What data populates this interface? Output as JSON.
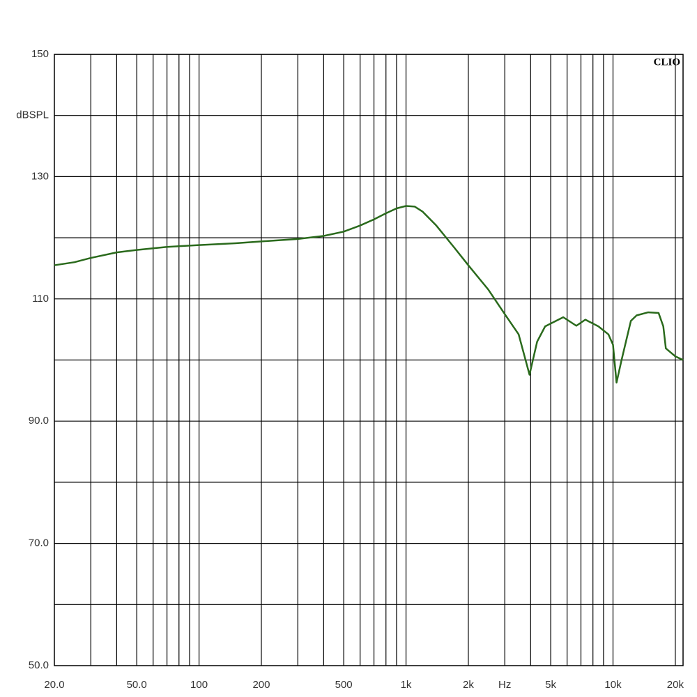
{
  "chart_data": {
    "type": "line",
    "brand": "CLIO",
    "y_label": "dBSPL",
    "log_x": true,
    "color": "#2a6a1c",
    "xlim": [
      20,
      21800
    ],
    "ylim": [
      50,
      150
    ],
    "yticks": [
      150,
      130,
      {
        "value": 110,
        "label": "110"
      },
      {
        "value": 90,
        "label": "90.0"
      },
      {
        "value": 70,
        "label": "70.0"
      },
      {
        "value": 50,
        "label": "50.0"
      }
    ],
    "y_label_at": 140,
    "ygrid": [
      60,
      70,
      80,
      90,
      100,
      110,
      120,
      130,
      140,
      150
    ],
    "xticks": [
      {
        "value": 20,
        "label": "20.0"
      },
      {
        "value": 50,
        "label": "50.0"
      },
      100,
      200,
      500,
      {
        "value": 1000,
        "label": "1k"
      },
      {
        "value": 2000,
        "label": "2k"
      },
      {
        "value": 3000,
        "label": "Hz"
      },
      {
        "value": 5000,
        "label": "5k"
      },
      {
        "value": 10000,
        "label": "10k"
      },
      {
        "value": 20000,
        "label": "20k"
      }
    ],
    "xgrid": [
      30,
      40,
      50,
      60,
      70,
      80,
      90,
      100,
      200,
      300,
      400,
      500,
      600,
      700,
      800,
      900,
      1000,
      2000,
      3000,
      4000,
      5000,
      6000,
      7000,
      8000,
      9000,
      10000,
      20000
    ],
    "x": [
      20,
      25,
      30,
      40,
      50,
      70,
      100,
      150,
      200,
      300,
      400,
      500,
      600,
      700,
      800,
      900,
      1000,
      1100,
      1200,
      1400,
      1700,
      2000,
      2500,
      3000,
      3500,
      3950,
      4300,
      4700,
      5750,
      6650,
      7350,
      8500,
      9500,
      10000,
      10400,
      11000,
      12200,
      13000,
      14800,
      16600,
      17500,
      18000,
      20000,
      21800
    ],
    "values": [
      115.5,
      116.0,
      116.7,
      117.6,
      118.0,
      118.5,
      118.8,
      119.1,
      119.4,
      119.8,
      120.3,
      121.0,
      122.0,
      123.0,
      124.0,
      124.8,
      125.2,
      125.1,
      124.3,
      122.0,
      118.5,
      115.5,
      111.5,
      107.5,
      104.2,
      97.6,
      103.0,
      105.5,
      107.0,
      105.6,
      106.6,
      105.5,
      104.2,
      102.5,
      96.3,
      100.0,
      106.4,
      107.3,
      107.8,
      107.7,
      105.5,
      101.9,
      100.6,
      100.0
    ]
  }
}
